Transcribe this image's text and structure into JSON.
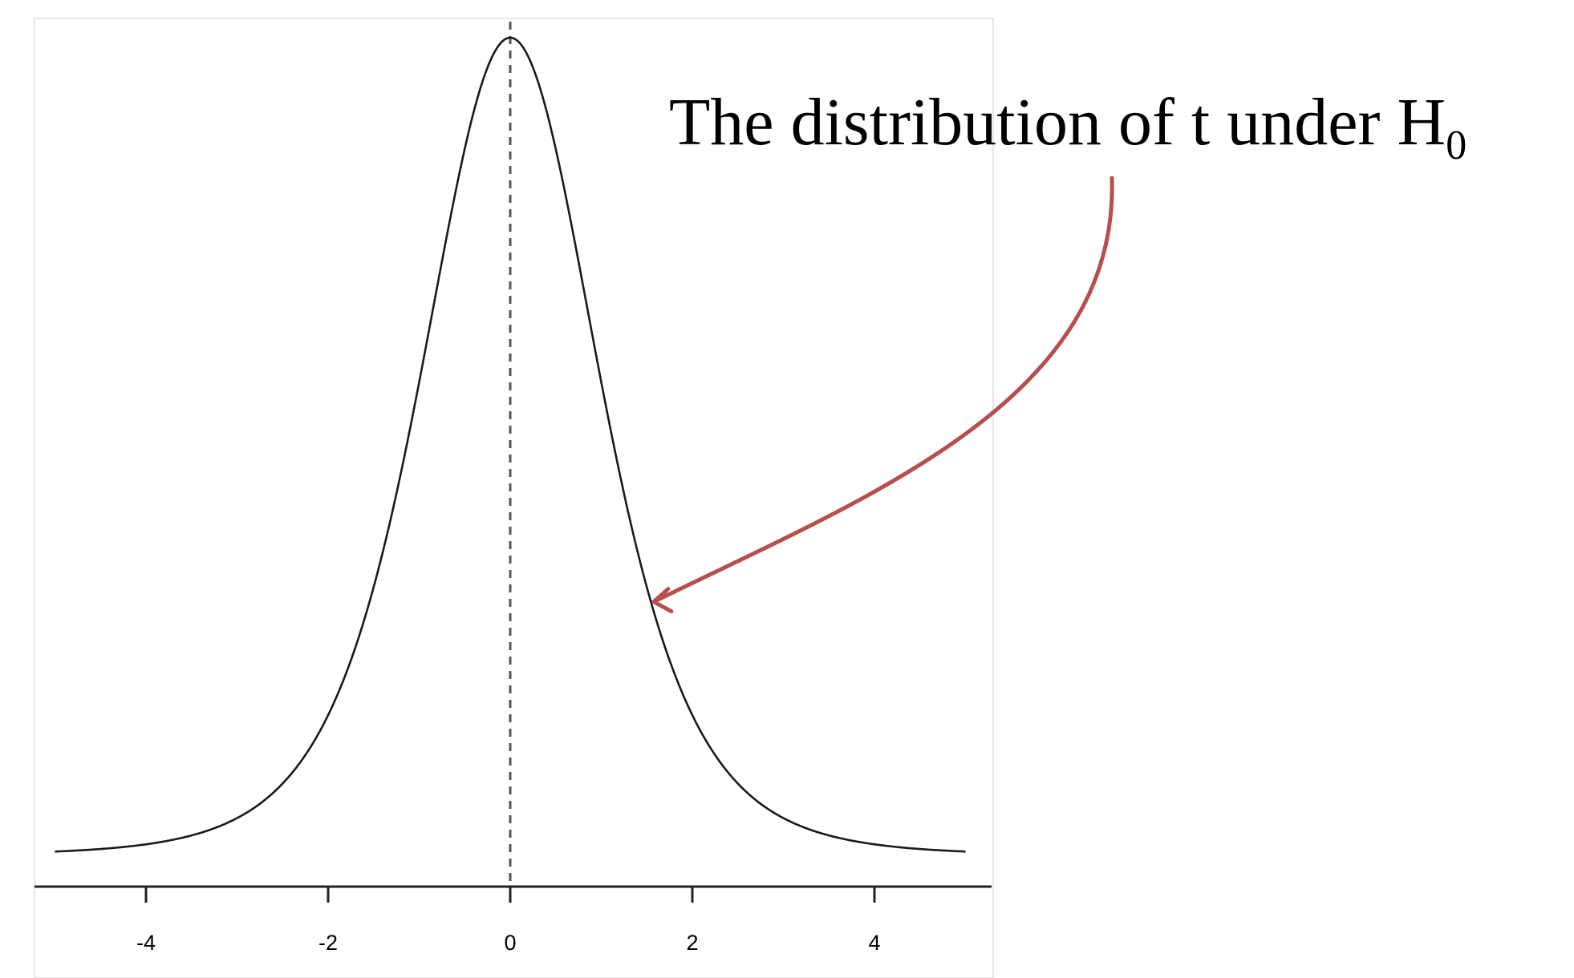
{
  "chart_data": {
    "type": "line",
    "title": "",
    "xlabel": "",
    "ylabel": "",
    "xlim": [
      -5,
      5
    ],
    "ylim": [
      0,
      0.4
    ],
    "x_ticks": [
      -4,
      -2,
      0,
      2,
      4
    ],
    "x_tick_labels": [
      "-4",
      "-2",
      "0",
      "2",
      "4"
    ],
    "grid": false,
    "series": [
      {
        "distribution": "t",
        "df": 5,
        "center": 0,
        "x_range": [
          -5,
          5
        ],
        "x": [
          -5,
          -4,
          -3,
          -2,
          -1.5,
          -1,
          -0.5,
          0,
          0.5,
          1,
          1.5,
          2,
          3,
          4,
          5
        ],
        "values": [
          0.0018,
          0.0051,
          0.0173,
          0.0651,
          0.1245,
          0.2197,
          0.3279,
          0.3796,
          0.3279,
          0.2197,
          0.1245,
          0.0651,
          0.0173,
          0.0051,
          0.0018
        ],
        "color": "#1a1a1a"
      }
    ],
    "reference_line": {
      "x": 0,
      "style": "dashed",
      "color": "#555555"
    },
    "annotation": {
      "text": "The distribution of t under H",
      "subscript": "0",
      "arrow_color": "#b5504f",
      "arrow_target_x": 1.55
    }
  }
}
